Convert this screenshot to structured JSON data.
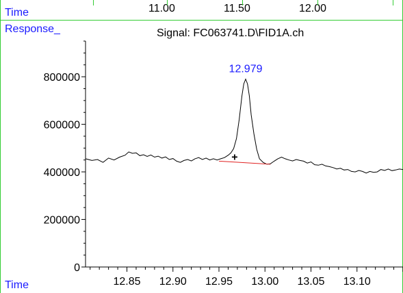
{
  "header": {
    "time_label": "Time",
    "top_ticks": [
      "11.00",
      "11.50",
      "12.00"
    ],
    "response_label": "Response_",
    "signal_title": "Signal: FC063741.D\\FID1A.ch"
  },
  "footer": {
    "time_label": "Time"
  },
  "colors": {
    "label_blue": "#1a1aff",
    "frame_green": "#33cc33",
    "trace": "#000000",
    "baseline": "#e02020",
    "peak_label": "#1a1aff"
  },
  "chart_data": {
    "type": "line",
    "title": "Signal: FC063741.D\\FID1A.ch",
    "xlabel": "Time",
    "ylabel": "Response_",
    "xlim": [
      12.805,
      13.15
    ],
    "ylim": [
      0,
      950000
    ],
    "x_ticks": [
      "12.85",
      "12.90",
      "12.95",
      "13.00",
      "13.05",
      "13.10"
    ],
    "y_ticks": [
      "0",
      "200000",
      "400000",
      "600000",
      "800000"
    ],
    "grid": false,
    "peak": {
      "label": "12.979",
      "apex_time": 12.979,
      "apex_response": 790000,
      "marker": "+",
      "marker_time": 12.967,
      "marker_response": 465000
    },
    "baseline": {
      "start": [
        12.95,
        445000
      ],
      "end": [
        13.006,
        432000
      ]
    },
    "series": [
      {
        "values": [
          [
            12.805,
            455000
          ],
          [
            12.812,
            448000
          ],
          [
            12.818,
            452000
          ],
          [
            12.824,
            440000
          ],
          [
            12.83,
            458000
          ],
          [
            12.836,
            450000
          ],
          [
            12.842,
            462000
          ],
          [
            12.848,
            470000
          ],
          [
            12.852,
            484000
          ],
          [
            12.856,
            478000
          ],
          [
            12.86,
            480000
          ],
          [
            12.864,
            468000
          ],
          [
            12.868,
            472000
          ],
          [
            12.872,
            465000
          ],
          [
            12.876,
            471000
          ],
          [
            12.88,
            462000
          ],
          [
            12.884,
            466000
          ],
          [
            12.888,
            458000
          ],
          [
            12.892,
            463000
          ],
          [
            12.896,
            452000
          ],
          [
            12.9,
            456000
          ],
          [
            12.904,
            445000
          ],
          [
            12.908,
            440000
          ],
          [
            12.912,
            448000
          ],
          [
            12.916,
            452000
          ],
          [
            12.92,
            446000
          ],
          [
            12.924,
            455000
          ],
          [
            12.928,
            460000
          ],
          [
            12.932,
            452000
          ],
          [
            12.936,
            458000
          ],
          [
            12.94,
            450000
          ],
          [
            12.944,
            455000
          ],
          [
            12.948,
            450000
          ],
          [
            12.952,
            455000
          ],
          [
            12.956,
            460000
          ],
          [
            12.96,
            470000
          ],
          [
            12.963,
            480000
          ],
          [
            12.966,
            498000
          ],
          [
            12.969,
            540000
          ],
          [
            12.972,
            620000
          ],
          [
            12.975,
            720000
          ],
          [
            12.977,
            770000
          ],
          [
            12.979,
            790000
          ],
          [
            12.981,
            770000
          ],
          [
            12.983,
            720000
          ],
          [
            12.985,
            640000
          ],
          [
            12.988,
            560000
          ],
          [
            12.991,
            495000
          ],
          [
            12.994,
            455000
          ],
          [
            12.998,
            440000
          ],
          [
            13.002,
            432000
          ],
          [
            13.006,
            434000
          ],
          [
            13.01,
            445000
          ],
          [
            13.014,
            455000
          ],
          [
            13.018,
            462000
          ],
          [
            13.022,
            455000
          ],
          [
            13.026,
            450000
          ],
          [
            13.03,
            446000
          ],
          [
            13.034,
            452000
          ],
          [
            13.038,
            448000
          ],
          [
            13.042,
            445000
          ],
          [
            13.046,
            437000
          ],
          [
            13.05,
            442000
          ],
          [
            13.054,
            430000
          ],
          [
            13.058,
            428000
          ],
          [
            13.062,
            432000
          ],
          [
            13.066,
            425000
          ],
          [
            13.07,
            422000
          ],
          [
            13.074,
            418000
          ],
          [
            13.078,
            412000
          ],
          [
            13.082,
            415000
          ],
          [
            13.086,
            408000
          ],
          [
            13.09,
            410000
          ],
          [
            13.094,
            402000
          ],
          [
            13.098,
            400000
          ],
          [
            13.102,
            406000
          ],
          [
            13.106,
            402000
          ],
          [
            13.11,
            395000
          ],
          [
            13.114,
            402000
          ],
          [
            13.118,
            398000
          ],
          [
            13.122,
            400000
          ],
          [
            13.126,
            410000
          ],
          [
            13.13,
            406000
          ],
          [
            13.134,
            412000
          ],
          [
            13.138,
            405000
          ],
          [
            13.142,
            408000
          ],
          [
            13.146,
            412000
          ],
          [
            13.15,
            410000
          ]
        ]
      }
    ]
  }
}
